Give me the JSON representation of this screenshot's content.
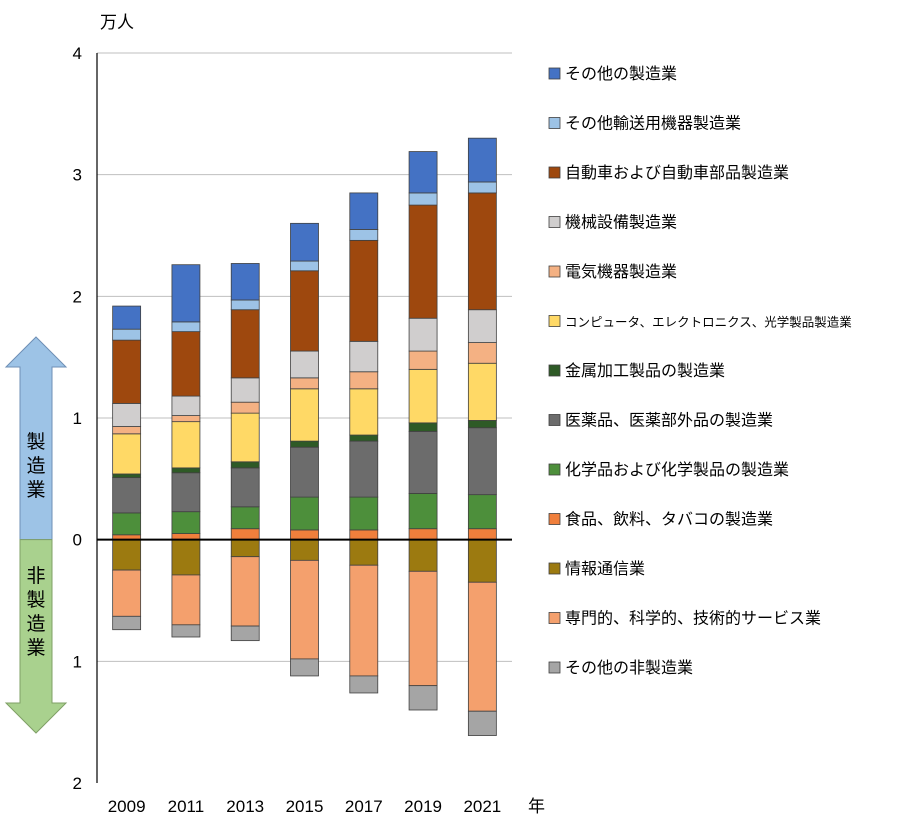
{
  "chart_data": {
    "type": "bar",
    "stacked": true,
    "diverging": true,
    "categories": [
      "2009",
      "2011",
      "2013",
      "2015",
      "2017",
      "2019",
      "2021"
    ],
    "y_unit": "万人",
    "x_unit": "年",
    "ylim": [
      -2,
      4
    ],
    "y_ticks": [
      {
        "value": 4,
        "label": "4"
      },
      {
        "value": 3,
        "label": "3"
      },
      {
        "value": 2,
        "label": "2"
      },
      {
        "value": 1,
        "label": "1"
      },
      {
        "value": 0,
        "label": "0"
      },
      {
        "value": -1,
        "label": "1"
      },
      {
        "value": -2,
        "label": "2"
      }
    ],
    "grid": true,
    "legend_position": "right",
    "group_labels": {
      "upper": "製造業",
      "lower": "非製造業"
    },
    "series": [
      {
        "name": "食品、飲料、タバコの製造業",
        "group": "upper",
        "color": "#F07F3C",
        "values": [
          0.04,
          0.05,
          0.09,
          0.08,
          0.08,
          0.09,
          0.09
        ]
      },
      {
        "name": "化学品および化学製品の製造業",
        "group": "upper",
        "color": "#4D8F3B",
        "values": [
          0.18,
          0.18,
          0.18,
          0.27,
          0.27,
          0.29,
          0.28
        ]
      },
      {
        "name": "医薬品、医薬部外品の製造業",
        "group": "upper",
        "color": "#6C6C6C",
        "values": [
          0.29,
          0.32,
          0.32,
          0.41,
          0.46,
          0.51,
          0.55
        ]
      },
      {
        "name": "金属加工製品の製造業",
        "group": "upper",
        "color": "#2E5A26",
        "values": [
          0.03,
          0.04,
          0.05,
          0.05,
          0.05,
          0.07,
          0.06
        ]
      },
      {
        "name": "コンピュータ、エレクトロニクス、光学製品製造業",
        "group": "upper",
        "color": "#FFD966",
        "values": [
          0.33,
          0.38,
          0.4,
          0.43,
          0.38,
          0.44,
          0.47
        ]
      },
      {
        "name": "電気機器製造業",
        "group": "upper",
        "color": "#F4B183",
        "values": [
          0.06,
          0.05,
          0.09,
          0.09,
          0.14,
          0.15,
          0.17
        ]
      },
      {
        "name": "機械設備製造業",
        "group": "upper",
        "color": "#D0CECE",
        "values": [
          0.19,
          0.16,
          0.2,
          0.22,
          0.25,
          0.27,
          0.27
        ]
      },
      {
        "name": "自動車および自動車部品製造業",
        "group": "upper",
        "color": "#9E480E",
        "values": [
          0.52,
          0.53,
          0.56,
          0.66,
          0.83,
          0.93,
          0.96
        ]
      },
      {
        "name": "その他輸送用機器製造業",
        "group": "upper",
        "color": "#9DC3E6",
        "values": [
          0.09,
          0.08,
          0.08,
          0.08,
          0.09,
          0.1,
          0.09
        ]
      },
      {
        "name": "その他の製造業",
        "group": "upper",
        "color": "#4472C4",
        "values": [
          0.19,
          0.47,
          0.3,
          0.31,
          0.3,
          0.34,
          0.36
        ]
      },
      {
        "name": "情報通信業",
        "group": "lower",
        "color": "#9C7A10",
        "values": [
          0.25,
          0.29,
          0.14,
          0.17,
          0.21,
          0.26,
          0.35
        ]
      },
      {
        "name": "専門的、科学的、技術的サービス業",
        "group": "lower",
        "color": "#F4A06D",
        "values": [
          0.38,
          0.41,
          0.57,
          0.81,
          0.91,
          0.94,
          1.06
        ]
      },
      {
        "name": "その他の非製造業",
        "group": "lower",
        "color": "#A5A5A5",
        "values": [
          0.11,
          0.1,
          0.12,
          0.14,
          0.14,
          0.2,
          0.2
        ]
      }
    ],
    "legend_order": [
      "その他の製造業",
      "その他輸送用機器製造業",
      "自動車および自動車部品製造業",
      "機械設備製造業",
      "電気機器製造業",
      "コンピュータ、エレクトロニクス、光学製品製造業",
      "金属加工製品の製造業",
      "医薬品、医薬部外品の製造業",
      "化学品および化学製品の製造業",
      "食品、飲料、タバコの製造業",
      "情報通信業",
      "専門的、科学的、技術的サービス業",
      "その他の非製造業"
    ],
    "arrow_colors": {
      "upper": "#9DC3E6",
      "lower": "#A9D18E"
    }
  }
}
